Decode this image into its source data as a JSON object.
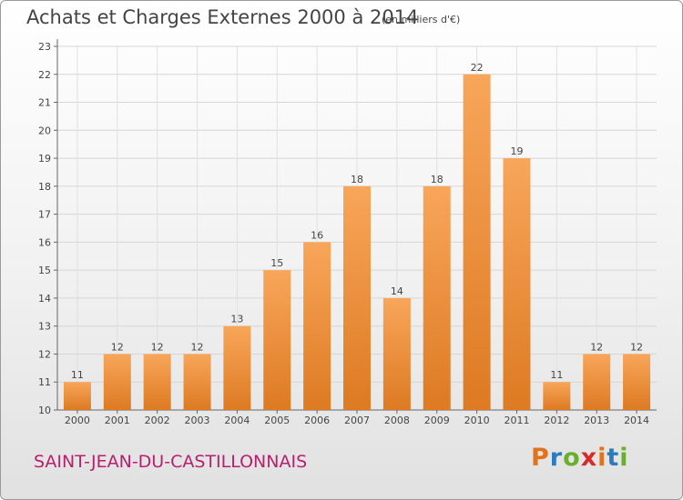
{
  "header": {
    "title": "Achats et Charges Externes 2000 à 2014",
    "subtitle": "(en milliers d'€)"
  },
  "footer": {
    "town": "SAINT-JEAN-DU-CASTILLONNAIS",
    "logo": "Proxiti"
  },
  "colors": {
    "bar_light": "#f8a65a",
    "bar_dark": "#dd7a22",
    "town": "#b81f6e",
    "logo_letters": [
      "#e2731a",
      "#2a7cc0",
      "#6aae2d",
      "#d92a2a",
      "#e2731a",
      "#2a7cc0",
      "#6aae2d"
    ]
  },
  "chart_data": {
    "type": "bar",
    "title": "Achats et Charges Externes 2000 à 2014",
    "subtitle": "(en milliers d'€)",
    "categories": [
      "2000",
      "2001",
      "2002",
      "2003",
      "2004",
      "2005",
      "2006",
      "2007",
      "2008",
      "2009",
      "2010",
      "2011",
      "2012",
      "2013",
      "2014"
    ],
    "values": [
      11,
      12,
      12,
      12,
      13,
      15,
      16,
      18,
      14,
      18,
      22,
      19,
      11,
      12,
      12
    ],
    "ylim": [
      10,
      23
    ],
    "yticks": [
      10,
      11,
      12,
      13,
      14,
      15,
      16,
      17,
      18,
      19,
      20,
      21,
      22,
      23
    ],
    "grid": true,
    "legend": "none"
  }
}
